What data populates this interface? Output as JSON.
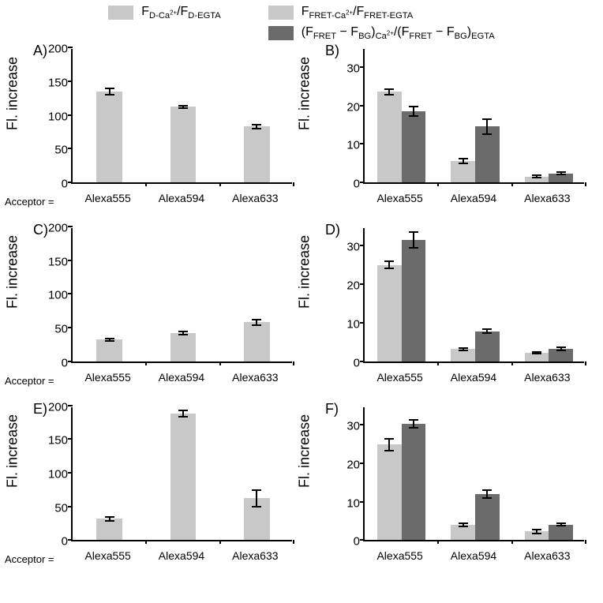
{
  "legend": {
    "left_label_html": "F<sub>D-Ca<sup>2+</sup></sub>/F<sub>D-EGTA</sub>",
    "right1_label_html": "F<sub>FRET-Ca<sup>2+</sup></sub>/F<sub>FRET-EGTA</sub>",
    "right2_label_html": "(F<sub>FRET</sub> − F<sub>BG</sub>)<sub>Ca<sup>2+</sup></sub>/(F<sub>FRET</sub> − F<sub>BG</sub>)<sub>EGTA</sub>",
    "light_color": "#c8c8c8",
    "dark_color": "#6b6b6b"
  },
  "common": {
    "ylabel": "Fl. increase",
    "acceptor_prefix": "Acceptor =",
    "categories": [
      "Alexa555",
      "Alexa594",
      "Alexa633"
    ],
    "axis_color": "#000000",
    "background": "#ffffff",
    "label_fontsize": 18,
    "tick_fontsize": 15,
    "category_fontsize": 14,
    "error_color": "#000000"
  },
  "panels": {
    "A": {
      "type": "bar",
      "grouped": false,
      "ylim": [
        0,
        200
      ],
      "ytick_step": 50,
      "bar_color": "#c8c8c8",
      "bar_width": 0.35,
      "values": [
        135,
        112,
        83
      ],
      "errors": [
        5,
        2,
        3
      ]
    },
    "B": {
      "type": "bar",
      "grouped": true,
      "ylim": [
        0,
        35
      ],
      "yticks": [
        0,
        10,
        20,
        30
      ],
      "bar_colors": [
        "#c8c8c8",
        "#6b6b6b"
      ],
      "bar_width": 0.33,
      "values": [
        [
          23.5,
          18.5
        ],
        [
          5.5,
          14.5
        ],
        [
          1.5,
          2.3
        ]
      ],
      "errors": [
        [
          0.8,
          1.3
        ],
        [
          0.6,
          2.0
        ],
        [
          0.3,
          0.3
        ]
      ]
    },
    "C": {
      "type": "bar",
      "grouped": false,
      "ylim": [
        0,
        200
      ],
      "ytick_step": 50,
      "bar_color": "#c8c8c8",
      "bar_width": 0.35,
      "values": [
        32,
        42,
        58
      ],
      "errors": [
        2,
        2,
        4
      ]
    },
    "D": {
      "type": "bar",
      "grouped": true,
      "ylim": [
        0,
        35
      ],
      "yticks": [
        0,
        10,
        20,
        30
      ],
      "bar_colors": [
        "#c8c8c8",
        "#6b6b6b"
      ],
      "bar_width": 0.33,
      "values": [
        [
          25.0,
          31.5
        ],
        [
          3.2,
          7.8
        ],
        [
          2.2,
          3.3
        ]
      ],
      "errors": [
        [
          0.9,
          2.1
        ],
        [
          0.3,
          0.5
        ],
        [
          0.3,
          0.4
        ]
      ]
    },
    "E": {
      "type": "bar",
      "grouped": false,
      "ylim": [
        0,
        200
      ],
      "ytick_step": 50,
      "bar_color": "#c8c8c8",
      "bar_width": 0.35,
      "values": [
        32,
        188,
        62
      ],
      "errors": [
        3,
        5,
        12
      ]
    },
    "F": {
      "type": "bar",
      "grouped": true,
      "ylim": [
        0,
        35
      ],
      "yticks": [
        0,
        10,
        20,
        30
      ],
      "bar_colors": [
        "#c8c8c8",
        "#6b6b6b"
      ],
      "bar_width": 0.33,
      "values": [
        [
          24.8,
          30.2
        ],
        [
          4.0,
          12.0
        ],
        [
          2.3,
          4.0
        ]
      ],
      "errors": [
        [
          1.6,
          1.0
        ],
        [
          0.4,
          1.1
        ],
        [
          0.5,
          0.3
        ]
      ]
    }
  },
  "panel_order": [
    "A",
    "B",
    "C",
    "D",
    "E",
    "F"
  ],
  "left_panels": [
    "A",
    "C",
    "E"
  ]
}
